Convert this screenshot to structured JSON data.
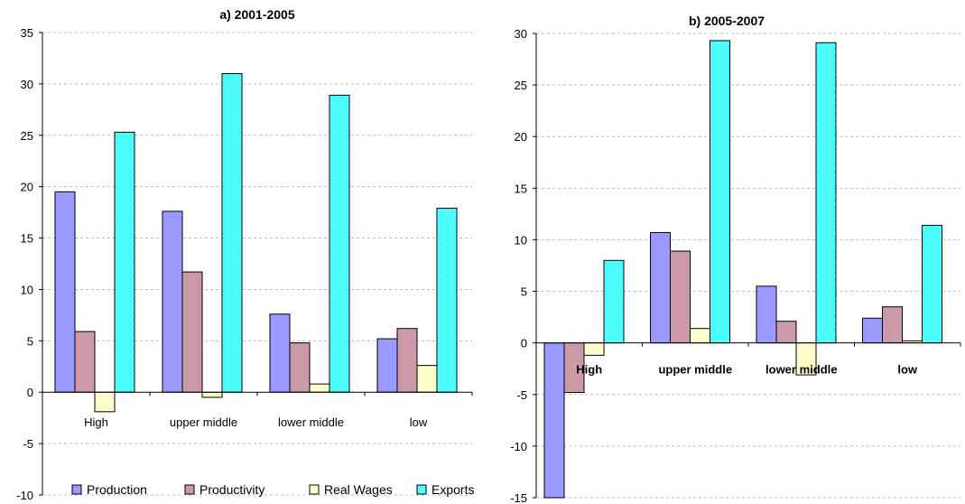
{
  "chart_data": [
    {
      "type": "bar",
      "title": "a) 2001-2005",
      "categories": [
        "High",
        "upper middle",
        "lower middle",
        "low"
      ],
      "ylim": [
        -10,
        35
      ],
      "yticks": [
        -10,
        -5,
        0,
        5,
        10,
        15,
        20,
        25,
        30,
        35
      ],
      "grid": true,
      "legend": "bottom",
      "series": [
        {
          "name": "Production",
          "values": [
            19.5,
            17.6,
            7.6,
            5.2
          ]
        },
        {
          "name": "Productivity",
          "values": [
            5.9,
            11.7,
            4.8,
            6.2
          ]
        },
        {
          "name": "Real Wages",
          "values": [
            -1.9,
            -0.5,
            0.8,
            2.6
          ]
        },
        {
          "name": "Exports",
          "values": [
            25.3,
            31.0,
            28.9,
            17.9
          ]
        }
      ]
    },
    {
      "type": "bar",
      "title": "b) 2005-2007",
      "categories": [
        "High",
        "upper middle",
        "lower middle",
        "low"
      ],
      "ylim": [
        -15,
        30
      ],
      "yticks": [
        -15,
        -10,
        -5,
        0,
        5,
        10,
        15,
        20,
        25,
        30
      ],
      "grid": true,
      "series": [
        {
          "name": "Production",
          "values": [
            -15.0,
            10.7,
            5.5,
            2.4
          ]
        },
        {
          "name": "Productivity",
          "values": [
            -4.8,
            8.9,
            2.1,
            3.5
          ]
        },
        {
          "name": "Real Wages",
          "values": [
            -1.2,
            1.4,
            -3.1,
            0.2
          ]
        },
        {
          "name": "Exports",
          "values": [
            8.0,
            29.3,
            29.1,
            11.4
          ]
        }
      ]
    }
  ],
  "colors": {
    "Production": "#9999ff",
    "Productivity": "#cc99a8",
    "Real Wages": "#ffffcc",
    "Exports": "#33ffff",
    "grid": "#bbbbbb"
  },
  "legend_labels": [
    "Production",
    "Productivity",
    "Real Wages",
    "Exports"
  ]
}
